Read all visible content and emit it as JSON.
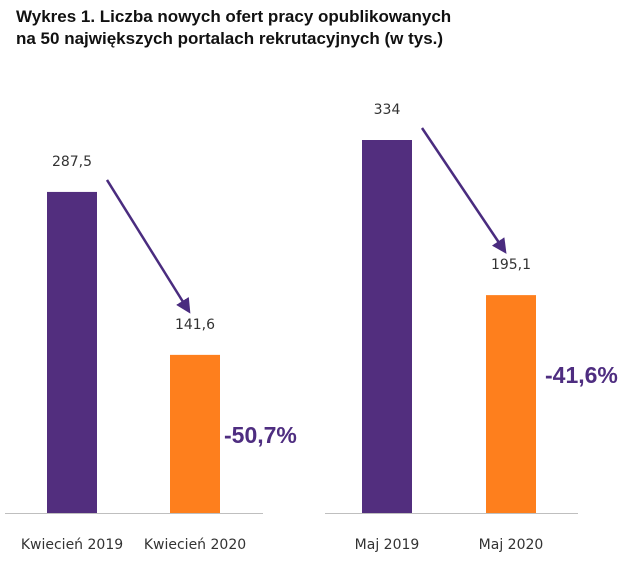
{
  "title": {
    "line1": "Wykres 1. Liczba nowych ofert pracy opublikowanych",
    "line2": "na 50 największych portalach rekrutacyjnych (w tys.)"
  },
  "colors": {
    "bar_2019": "#522e7e",
    "bar_2020": "#fe7f1d",
    "arrow": "#4a2c7f",
    "change_text": "#4e2d80",
    "baseline": "#bfbfbf"
  },
  "chart_data": [
    {
      "type": "bar",
      "categories": [
        "Kwiecień 2019",
        "Kwiecień 2020"
      ],
      "values": [
        287.5,
        141.6
      ],
      "value_labels": [
        "287,5",
        "141,6"
      ],
      "change_label": "-50,7%",
      "ylim": [
        0,
        334
      ]
    },
    {
      "type": "bar",
      "categories": [
        "Maj 2019",
        "Maj 2020"
      ],
      "values": [
        334,
        195.1
      ],
      "value_labels": [
        "334",
        "195,1"
      ],
      "change_label": "-41,6%",
      "ylim": [
        0,
        334
      ]
    }
  ]
}
